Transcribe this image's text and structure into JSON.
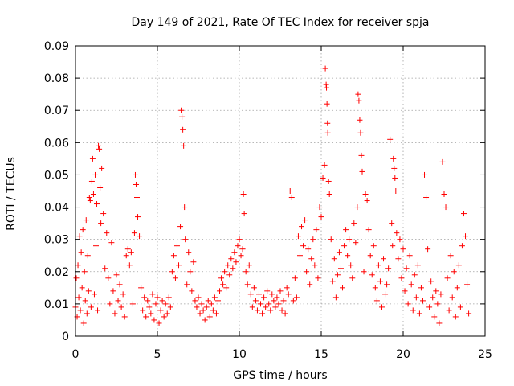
{
  "chart_data": {
    "type": "scatter",
    "title": "Day 149 of 2021, Rate Of TEC Index for receiver spja",
    "xlabel": "GPS time / hours",
    "ylabel": "ROTI / TECUs",
    "xlim": [
      0,
      25
    ],
    "ylim": [
      0,
      0.09
    ],
    "xticks": [
      0,
      5,
      10,
      15,
      20,
      25
    ],
    "xtick_labels": [
      "0",
      "5",
      "10",
      "15",
      "20",
      "25"
    ],
    "yticks": [
      0,
      0.01,
      0.02,
      0.03,
      0.04,
      0.05,
      0.06,
      0.07,
      0.08,
      0.09
    ],
    "ytick_labels": [
      "0",
      "0.01",
      "0.02",
      "0.03",
      "0.04",
      "0.05",
      "0.06",
      "0.07",
      "0.08",
      "0.09"
    ],
    "grid": true,
    "marker": "+",
    "color": "#ff0000",
    "series": [
      {
        "name": "ROTI",
        "points": [
          [
            0.0,
            0.009
          ],
          [
            0.05,
            0.018
          ],
          [
            0.1,
            0.006
          ],
          [
            0.15,
            0.022
          ],
          [
            0.2,
            0.012
          ],
          [
            0.25,
            0.031
          ],
          [
            0.3,
            0.008
          ],
          [
            0.35,
            0.026
          ],
          [
            0.4,
            0.015
          ],
          [
            0.45,
            0.033
          ],
          [
            0.5,
            0.004
          ],
          [
            0.55,
            0.02
          ],
          [
            0.6,
            0.011
          ],
          [
            0.65,
            0.036
          ],
          [
            0.7,
            0.007
          ],
          [
            0.75,
            0.025
          ],
          [
            0.8,
            0.014
          ],
          [
            0.85,
            0.043
          ],
          [
            0.9,
            0.042
          ],
          [
            0.95,
            0.009
          ],
          [
            1.0,
            0.048
          ],
          [
            1.05,
            0.055
          ],
          [
            1.1,
            0.044
          ],
          [
            1.15,
            0.013
          ],
          [
            1.2,
            0.05
          ],
          [
            1.25,
            0.028
          ],
          [
            1.3,
            0.041
          ],
          [
            1.35,
            0.008
          ],
          [
            1.4,
            0.059
          ],
          [
            1.45,
            0.058
          ],
          [
            1.5,
            0.046
          ],
          [
            1.55,
            0.035
          ],
          [
            1.6,
            0.052
          ],
          [
            1.7,
            0.038
          ],
          [
            1.8,
            0.021
          ],
          [
            1.9,
            0.032
          ],
          [
            2.0,
            0.018
          ],
          [
            2.1,
            0.01
          ],
          [
            2.2,
            0.029
          ],
          [
            2.3,
            0.014
          ],
          [
            2.4,
            0.007
          ],
          [
            2.5,
            0.019
          ],
          [
            2.6,
            0.011
          ],
          [
            2.7,
            0.016
          ],
          [
            2.8,
            0.009
          ],
          [
            2.9,
            0.013
          ],
          [
            3.0,
            0.006
          ],
          [
            3.1,
            0.025
          ],
          [
            3.2,
            0.027
          ],
          [
            3.3,
            0.022
          ],
          [
            3.4,
            0.026
          ],
          [
            3.5,
            0.01
          ],
          [
            3.6,
            0.032
          ],
          [
            3.65,
            0.05
          ],
          [
            3.7,
            0.047
          ],
          [
            3.75,
            0.043
          ],
          [
            3.8,
            0.037
          ],
          [
            3.9,
            0.031
          ],
          [
            4.0,
            0.015
          ],
          [
            4.1,
            0.008
          ],
          [
            4.2,
            0.012
          ],
          [
            4.3,
            0.006
          ],
          [
            4.4,
            0.011
          ],
          [
            4.5,
            0.009
          ],
          [
            4.6,
            0.007
          ],
          [
            4.7,
            0.013
          ],
          [
            4.8,
            0.005
          ],
          [
            4.9,
            0.01
          ],
          [
            5.0,
            0.012
          ],
          [
            5.1,
            0.004
          ],
          [
            5.2,
            0.008
          ],
          [
            5.3,
            0.011
          ],
          [
            5.4,
            0.006
          ],
          [
            5.5,
            0.01
          ],
          [
            5.6,
            0.007
          ],
          [
            5.7,
            0.012
          ],
          [
            5.8,
            0.009
          ],
          [
            5.9,
            0.02
          ],
          [
            6.0,
            0.025
          ],
          [
            6.1,
            0.018
          ],
          [
            6.2,
            0.028
          ],
          [
            6.3,
            0.022
          ],
          [
            6.4,
            0.034
          ],
          [
            6.45,
            0.07
          ],
          [
            6.5,
            0.068
          ],
          [
            6.55,
            0.064
          ],
          [
            6.6,
            0.059
          ],
          [
            6.65,
            0.04
          ],
          [
            6.7,
            0.03
          ],
          [
            6.8,
            0.016
          ],
          [
            6.9,
            0.026
          ],
          [
            7.0,
            0.02
          ],
          [
            7.1,
            0.014
          ],
          [
            7.2,
            0.023
          ],
          [
            7.3,
            0.011
          ],
          [
            7.4,
            0.009
          ],
          [
            7.5,
            0.012
          ],
          [
            7.6,
            0.007
          ],
          [
            7.7,
            0.01
          ],
          [
            7.8,
            0.008
          ],
          [
            7.9,
            0.005
          ],
          [
            8.0,
            0.009
          ],
          [
            8.1,
            0.011
          ],
          [
            8.2,
            0.006
          ],
          [
            8.3,
            0.01
          ],
          [
            8.4,
            0.008
          ],
          [
            8.5,
            0.012
          ],
          [
            8.6,
            0.007
          ],
          [
            8.7,
            0.011
          ],
          [
            8.8,
            0.014
          ],
          [
            8.9,
            0.018
          ],
          [
            9.0,
            0.016
          ],
          [
            9.1,
            0.02
          ],
          [
            9.2,
            0.015
          ],
          [
            9.3,
            0.022
          ],
          [
            9.4,
            0.019
          ],
          [
            9.5,
            0.024
          ],
          [
            9.6,
            0.021
          ],
          [
            9.7,
            0.026
          ],
          [
            9.8,
            0.023
          ],
          [
            9.9,
            0.028
          ],
          [
            10.0,
            0.03
          ],
          [
            10.1,
            0.025
          ],
          [
            10.2,
            0.027
          ],
          [
            10.25,
            0.044
          ],
          [
            10.3,
            0.038
          ],
          [
            10.4,
            0.02
          ],
          [
            10.5,
            0.016
          ],
          [
            10.6,
            0.022
          ],
          [
            10.7,
            0.013
          ],
          [
            10.8,
            0.009
          ],
          [
            10.9,
            0.015
          ],
          [
            11.0,
            0.011
          ],
          [
            11.1,
            0.008
          ],
          [
            11.2,
            0.013
          ],
          [
            11.3,
            0.01
          ],
          [
            11.4,
            0.007
          ],
          [
            11.5,
            0.012
          ],
          [
            11.6,
            0.009
          ],
          [
            11.7,
            0.014
          ],
          [
            11.8,
            0.01
          ],
          [
            11.9,
            0.008
          ],
          [
            12.0,
            0.013
          ],
          [
            12.1,
            0.011
          ],
          [
            12.2,
            0.009
          ],
          [
            12.3,
            0.012
          ],
          [
            12.4,
            0.01
          ],
          [
            12.5,
            0.014
          ],
          [
            12.6,
            0.008
          ],
          [
            12.7,
            0.011
          ],
          [
            12.8,
            0.007
          ],
          [
            12.9,
            0.015
          ],
          [
            13.0,
            0.013
          ],
          [
            13.1,
            0.045
          ],
          [
            13.2,
            0.043
          ],
          [
            13.3,
            0.011
          ],
          [
            13.4,
            0.018
          ],
          [
            13.5,
            0.012
          ],
          [
            13.6,
            0.031
          ],
          [
            13.7,
            0.025
          ],
          [
            13.8,
            0.034
          ],
          [
            13.9,
            0.028
          ],
          [
            14.0,
            0.036
          ],
          [
            14.1,
            0.02
          ],
          [
            14.2,
            0.027
          ],
          [
            14.3,
            0.016
          ],
          [
            14.4,
            0.024
          ],
          [
            14.5,
            0.03
          ],
          [
            14.6,
            0.022
          ],
          [
            14.7,
            0.033
          ],
          [
            14.8,
            0.018
          ],
          [
            14.9,
            0.04
          ],
          [
            15.0,
            0.037
          ],
          [
            15.1,
            0.049
          ],
          [
            15.2,
            0.053
          ],
          [
            15.25,
            0.083
          ],
          [
            15.3,
            0.078
          ],
          [
            15.32,
            0.077
          ],
          [
            15.35,
            0.072
          ],
          [
            15.38,
            0.066
          ],
          [
            15.4,
            0.063
          ],
          [
            15.45,
            0.048
          ],
          [
            15.5,
            0.044
          ],
          [
            15.6,
            0.03
          ],
          [
            15.7,
            0.017
          ],
          [
            15.8,
            0.024
          ],
          [
            15.9,
            0.012
          ],
          [
            16.0,
            0.019
          ],
          [
            16.1,
            0.026
          ],
          [
            16.2,
            0.021
          ],
          [
            16.3,
            0.015
          ],
          [
            16.4,
            0.028
          ],
          [
            16.5,
            0.033
          ],
          [
            16.6,
            0.025
          ],
          [
            16.7,
            0.03
          ],
          [
            16.8,
            0.022
          ],
          [
            16.9,
            0.018
          ],
          [
            17.0,
            0.035
          ],
          [
            17.1,
            0.029
          ],
          [
            17.2,
            0.04
          ],
          [
            17.25,
            0.075
          ],
          [
            17.3,
            0.073
          ],
          [
            17.35,
            0.067
          ],
          [
            17.4,
            0.063
          ],
          [
            17.45,
            0.056
          ],
          [
            17.5,
            0.051
          ],
          [
            17.6,
            0.02
          ],
          [
            17.7,
            0.044
          ],
          [
            17.8,
            0.042
          ],
          [
            17.9,
            0.033
          ],
          [
            18.0,
            0.025
          ],
          [
            18.1,
            0.019
          ],
          [
            18.2,
            0.028
          ],
          [
            18.3,
            0.015
          ],
          [
            18.4,
            0.011
          ],
          [
            18.5,
            0.022
          ],
          [
            18.6,
            0.017
          ],
          [
            18.7,
            0.009
          ],
          [
            18.8,
            0.024
          ],
          [
            18.9,
            0.013
          ],
          [
            19.0,
            0.016
          ],
          [
            19.1,
            0.021
          ],
          [
            19.2,
            0.061
          ],
          [
            19.3,
            0.035
          ],
          [
            19.35,
            0.028
          ],
          [
            19.4,
            0.055
          ],
          [
            19.45,
            0.052
          ],
          [
            19.5,
            0.049
          ],
          [
            19.55,
            0.045
          ],
          [
            19.6,
            0.032
          ],
          [
            19.7,
            0.024
          ],
          [
            19.8,
            0.03
          ],
          [
            19.9,
            0.018
          ],
          [
            20.0,
            0.027
          ],
          [
            20.1,
            0.014
          ],
          [
            20.2,
            0.021
          ],
          [
            20.3,
            0.01
          ],
          [
            20.4,
            0.025
          ],
          [
            20.5,
            0.016
          ],
          [
            20.6,
            0.008
          ],
          [
            20.7,
            0.019
          ],
          [
            20.8,
            0.012
          ],
          [
            20.9,
            0.022
          ],
          [
            21.0,
            0.007
          ],
          [
            21.1,
            0.015
          ],
          [
            21.2,
            0.011
          ],
          [
            21.3,
            0.05
          ],
          [
            21.4,
            0.043
          ],
          [
            21.5,
            0.027
          ],
          [
            21.6,
            0.009
          ],
          [
            21.7,
            0.017
          ],
          [
            21.8,
            0.012
          ],
          [
            21.9,
            0.006
          ],
          [
            22.0,
            0.014
          ],
          [
            22.1,
            0.01
          ],
          [
            22.2,
            0.004
          ],
          [
            22.3,
            0.013
          ],
          [
            22.4,
            0.054
          ],
          [
            22.5,
            0.044
          ],
          [
            22.6,
            0.04
          ],
          [
            22.7,
            0.018
          ],
          [
            22.8,
            0.008
          ],
          [
            22.9,
            0.025
          ],
          [
            23.0,
            0.012
          ],
          [
            23.1,
            0.02
          ],
          [
            23.2,
            0.006
          ],
          [
            23.3,
            0.015
          ],
          [
            23.4,
            0.022
          ],
          [
            23.5,
            0.009
          ],
          [
            23.6,
            0.028
          ],
          [
            23.7,
            0.038
          ],
          [
            23.8,
            0.031
          ],
          [
            23.9,
            0.016
          ],
          [
            24.0,
            0.007
          ]
        ]
      }
    ]
  }
}
